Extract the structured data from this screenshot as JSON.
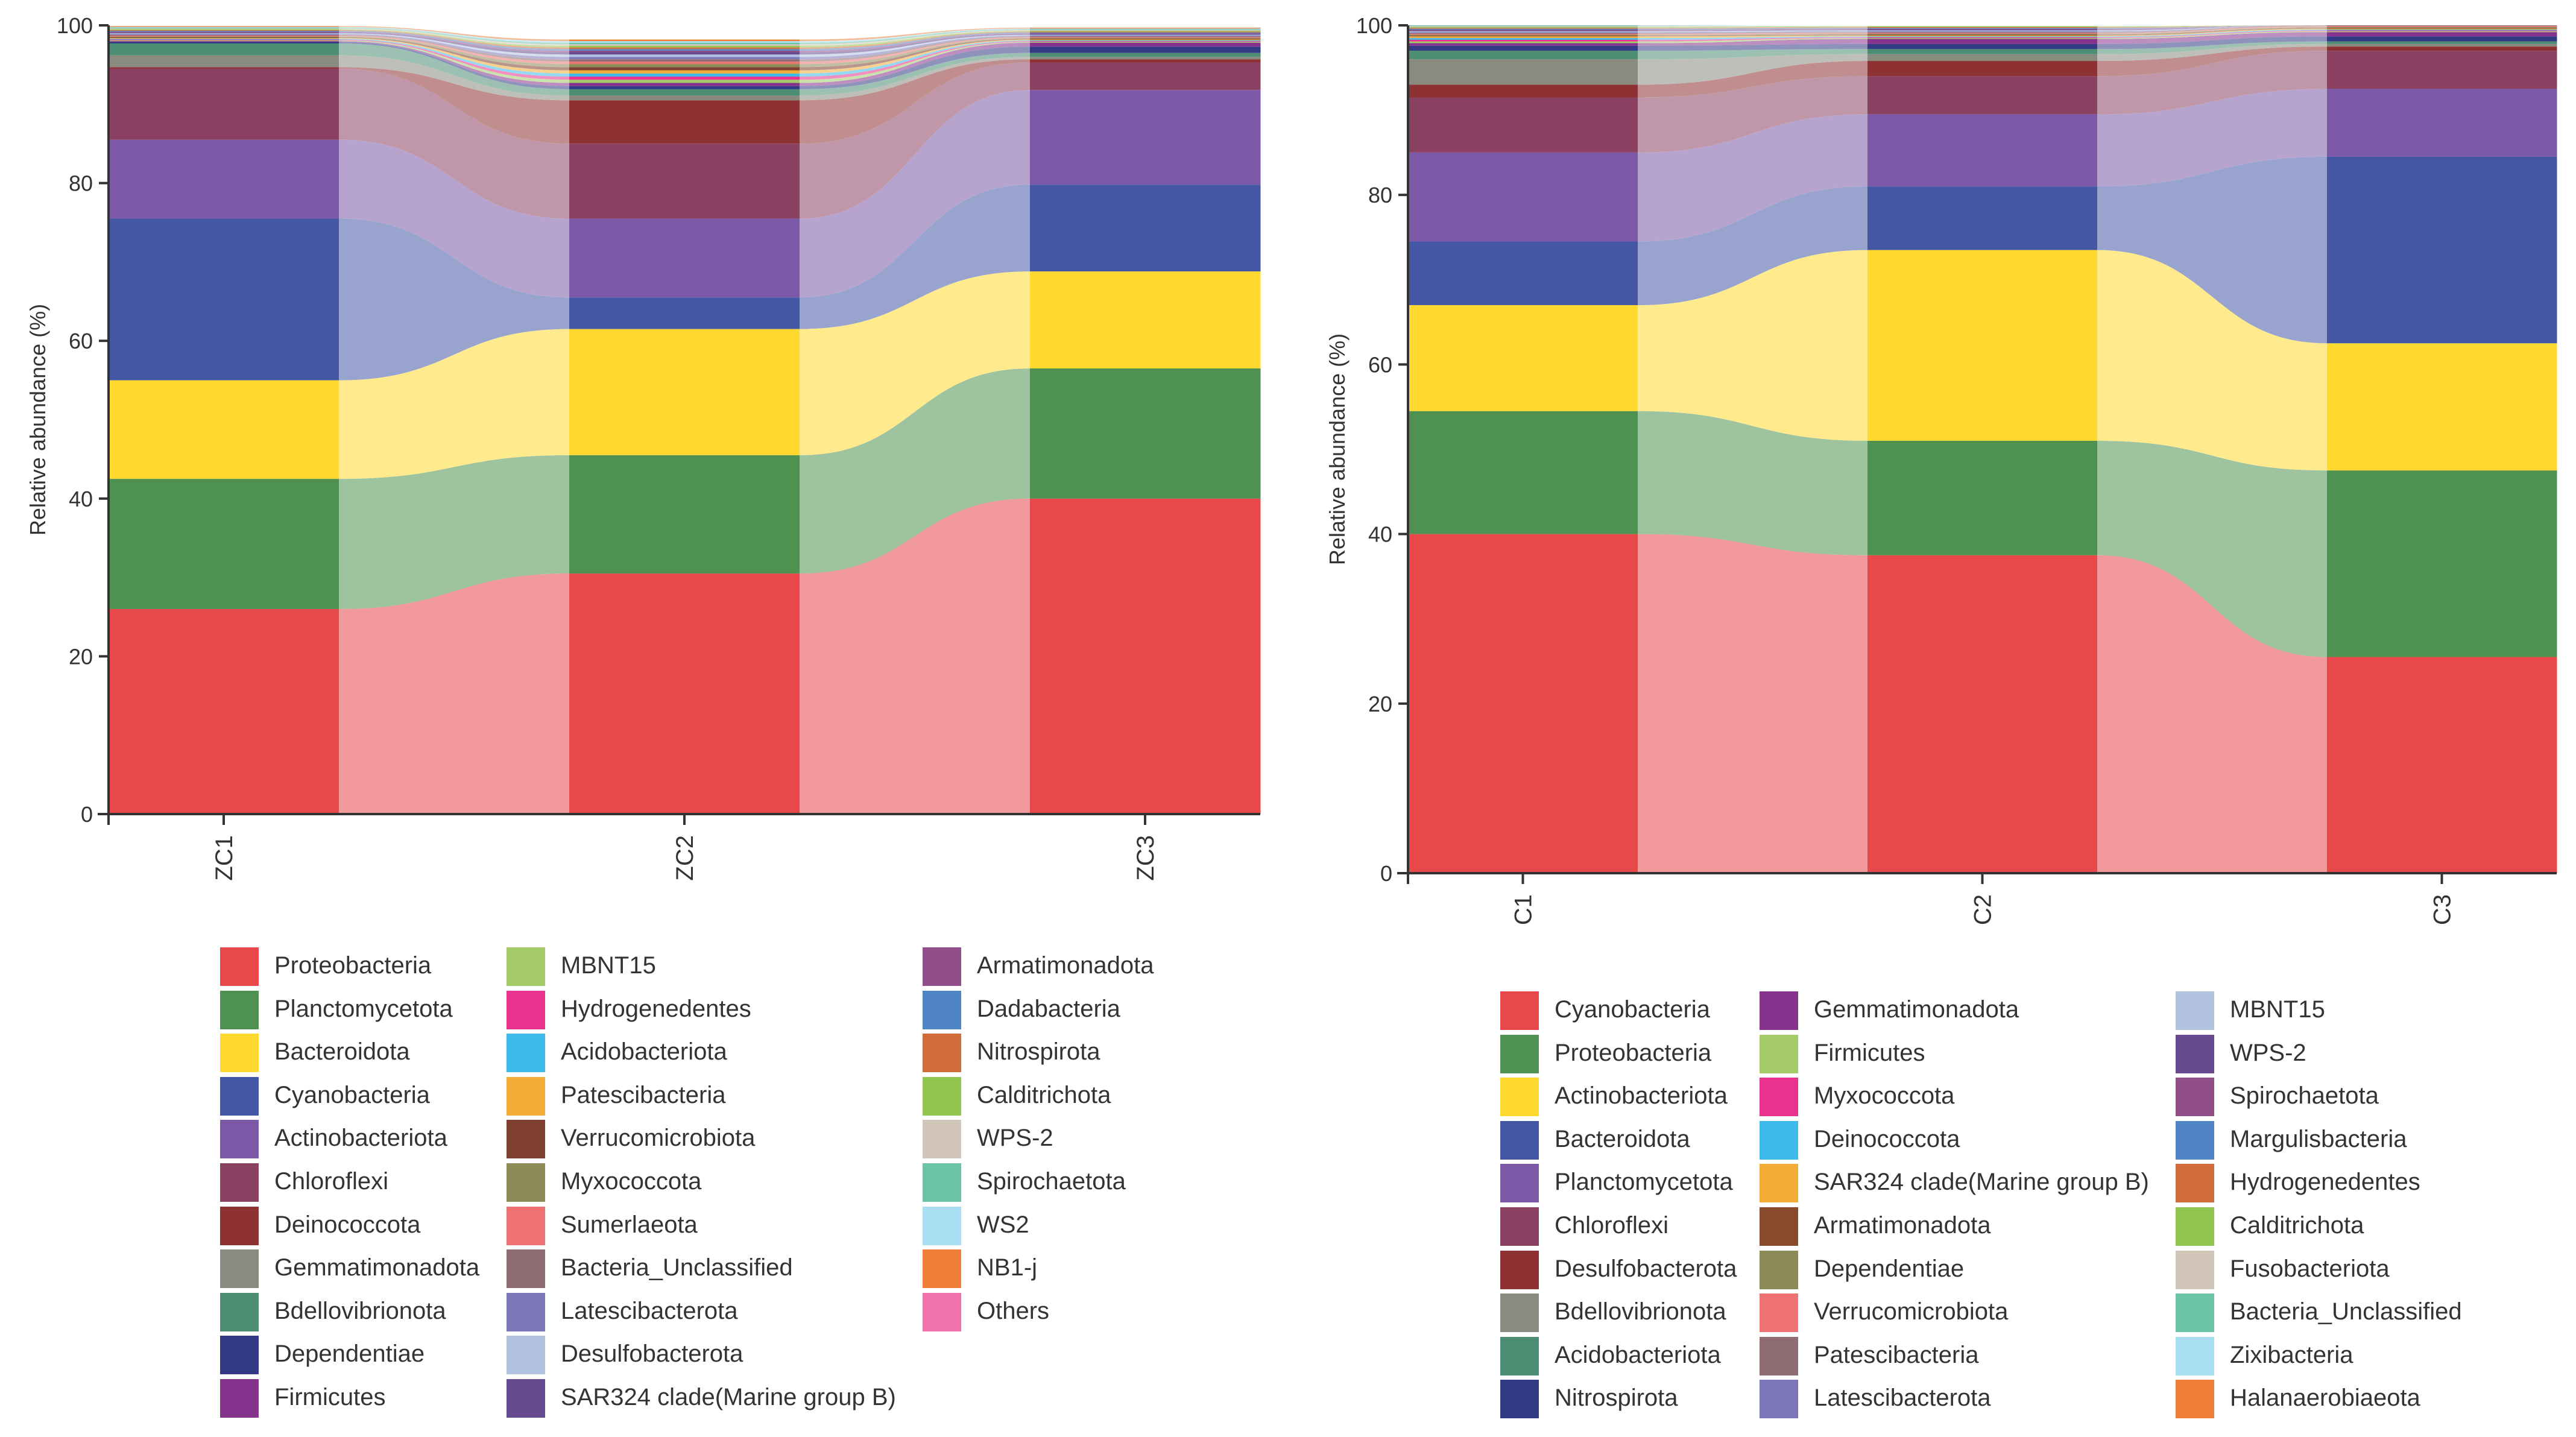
{
  "chart_data": [
    {
      "type": "area",
      "subtype": "stacked-alluvial",
      "ylabel": "Relative abundance (%)",
      "ylim": [
        0,
        100
      ],
      "yticks": [
        0,
        20,
        40,
        60,
        80,
        100
      ],
      "categories": [
        "ZC1",
        "ZC2",
        "ZC3"
      ],
      "series": [
        {
          "name": "Proteobacteria",
          "color": "#E8484A",
          "values": [
            26.0,
            30.5,
            40.0
          ]
        },
        {
          "name": "Planctomycetota",
          "color": "#4E9150",
          "values": [
            16.5,
            15.0,
            16.5
          ]
        },
        {
          "name": "Bacteroidota",
          "color": "#FFD92F",
          "values": [
            12.5,
            16.0,
            12.3
          ]
        },
        {
          "name": "Cyanobacteria",
          "color": "#4457A5",
          "values": [
            20.5,
            4.0,
            11.0
          ]
        },
        {
          "name": "Actinobacteriota",
          "color": "#7B59A7",
          "values": [
            10.0,
            10.0,
            12.0
          ]
        },
        {
          "name": "Chloroflexi",
          "color": "#8B4262",
          "values": [
            9.0,
            9.5,
            3.5
          ]
        },
        {
          "name": "Deinococcota",
          "color": "#8E3133",
          "values": [
            0.2,
            5.5,
            0.4
          ]
        },
        {
          "name": "Gemmatimonadota",
          "color": "#8A8B7F",
          "values": [
            1.5,
            0.6,
            0.3
          ]
        },
        {
          "name": "Bdellovibrionota",
          "color": "#4B8E74",
          "values": [
            1.5,
            0.8,
            0.5
          ]
        },
        {
          "name": "Dependentiae",
          "color": "#323A86",
          "values": [
            0.2,
            0.4,
            0.8
          ]
        },
        {
          "name": "Firmicutes",
          "color": "#86338D",
          "values": [
            0.1,
            0.4,
            0.5
          ]
        },
        {
          "name": "MBNT15",
          "color": "#A3CA66",
          "values": [
            0.1,
            0.4,
            0.1
          ]
        },
        {
          "name": "Hydrogenedentes",
          "color": "#E8338E",
          "values": [
            0.1,
            0.4,
            0.1
          ]
        },
        {
          "name": "Acidobacteriota",
          "color": "#3DBAE9",
          "values": [
            0.1,
            0.4,
            0.1
          ]
        },
        {
          "name": "Patescibacteria",
          "color": "#F1AB36",
          "values": [
            0.1,
            0.4,
            0.1
          ]
        },
        {
          "name": "Verrucomicrobiota",
          "color": "#7F3F2E",
          "values": [
            0.1,
            0.4,
            0.1
          ]
        },
        {
          "name": "Myxococcota",
          "color": "#8C8A57",
          "values": [
            0.1,
            0.4,
            0.1
          ]
        },
        {
          "name": "Sumerlaeota",
          "color": "#EE7272",
          "values": [
            0.1,
            0.3,
            0.1
          ]
        },
        {
          "name": "Bacteria_Unclassified",
          "color": "#8F6C72",
          "values": [
            0.1,
            0.3,
            0.1
          ]
        },
        {
          "name": "Latescibacterota",
          "color": "#7C77B9",
          "values": [
            0.1,
            0.3,
            0.1
          ]
        },
        {
          "name": "Desulfobacterota",
          "color": "#B1C3E0",
          "values": [
            0.1,
            0.3,
            0.1
          ]
        },
        {
          "name": "SAR324 clade(Marine group B)",
          "color": "#654A8E",
          "values": [
            0.1,
            0.3,
            0.1
          ]
        },
        {
          "name": "Armatimonadota",
          "color": "#904F89",
          "values": [
            0.1,
            0.2,
            0.1
          ]
        },
        {
          "name": "Dadabacteria",
          "color": "#4E84C4",
          "values": [
            0.1,
            0.2,
            0.1
          ]
        },
        {
          "name": "Nitrospirota",
          "color": "#D16C3A",
          "values": [
            0.1,
            0.2,
            0.1
          ]
        },
        {
          "name": "Calditrichota",
          "color": "#93C650",
          "values": [
            0.1,
            0.2,
            0.1
          ]
        },
        {
          "name": "WPS-2",
          "color": "#D1C6B7",
          "values": [
            0.1,
            0.2,
            0.1
          ]
        },
        {
          "name": "Spirochaetota",
          "color": "#6DC3A7",
          "values": [
            0.1,
            0.2,
            0.1
          ]
        },
        {
          "name": "WS2",
          "color": "#A9DDF1",
          "values": [
            0.1,
            0.2,
            0.1
          ]
        },
        {
          "name": "NB1-j",
          "color": "#EF7F37",
          "values": [
            0.1,
            0.2,
            0.1
          ]
        },
        {
          "name": "Others",
          "color": "#EE74AB",
          "values": [
            0.0,
            0.0,
            0.0
          ]
        }
      ]
    },
    {
      "type": "area",
      "subtype": "stacked-alluvial",
      "ylabel": "Relative abundance (%)",
      "ylim": [
        0,
        100
      ],
      "yticks": [
        0,
        20,
        40,
        60,
        80,
        100
      ],
      "categories": [
        "C1",
        "C2",
        "C3"
      ],
      "series": [
        {
          "name": "Cyanobacteria",
          "color": "#E8484A",
          "values": [
            40.0,
            37.5,
            25.5
          ]
        },
        {
          "name": "Proteobacteria",
          "color": "#4E9150",
          "values": [
            14.5,
            13.5,
            22.0
          ]
        },
        {
          "name": "Actinobacteriota",
          "color": "#FFD92F",
          "values": [
            12.5,
            22.5,
            15.0
          ]
        },
        {
          "name": "Bacteroidota",
          "color": "#4457A5",
          "values": [
            7.5,
            7.5,
            22.0
          ]
        },
        {
          "name": "Planctomycetota",
          "color": "#7B59A7",
          "values": [
            10.5,
            8.5,
            8.0
          ]
        },
        {
          "name": "Chloroflexi",
          "color": "#8B4262",
          "values": [
            6.5,
            4.5,
            4.5
          ]
        },
        {
          "name": "Desulfobacterota",
          "color": "#8E3133",
          "values": [
            1.5,
            1.8,
            0.5
          ]
        },
        {
          "name": "Bdellovibrionota",
          "color": "#8A8B7F",
          "values": [
            3.0,
            0.8,
            0.3
          ]
        },
        {
          "name": "Acidobacteriota",
          "color": "#4B8E74",
          "values": [
            1.0,
            0.6,
            0.3
          ]
        },
        {
          "name": "Nitrospirota",
          "color": "#323A86",
          "values": [
            0.6,
            0.6,
            0.6
          ]
        },
        {
          "name": "Gemmatimonadota",
          "color": "#86338D",
          "values": [
            0.3,
            0.6,
            0.5
          ]
        },
        {
          "name": "Firmicutes",
          "color": "#A3CA66",
          "values": [
            0.2,
            0.1,
            0.1
          ]
        },
        {
          "name": "Myxococcota",
          "color": "#E8338E",
          "values": [
            0.2,
            0.1,
            0.1
          ]
        },
        {
          "name": "Deinococcota",
          "color": "#3DBAE9",
          "values": [
            0.2,
            0.1,
            0.1
          ]
        },
        {
          "name": "SAR324 clade(Marine group B)",
          "color": "#F1AB36",
          "values": [
            0.2,
            0.1,
            0.1
          ]
        },
        {
          "name": "Armatimonadota",
          "color": "#8A4A2E",
          "values": [
            0.1,
            0.1,
            0.1
          ]
        },
        {
          "name": "Dependentiae",
          "color": "#8C8A57",
          "values": [
            0.1,
            0.1,
            0.1
          ]
        },
        {
          "name": "Verrucomicrobiota",
          "color": "#EE7272",
          "values": [
            0.1,
            0.1,
            0.1
          ]
        },
        {
          "name": "Patescibacteria",
          "color": "#8F6C72",
          "values": [
            0.1,
            0.1,
            0.1
          ]
        },
        {
          "name": "Latescibacterota",
          "color": "#7C77B9",
          "values": [
            0.1,
            0.1,
            0.0
          ]
        },
        {
          "name": "MBNT15",
          "color": "#B1C3E0",
          "values": [
            0.1,
            0.1,
            0.0
          ]
        },
        {
          "name": "WPS-2",
          "color": "#654A8E",
          "values": [
            0.1,
            0.1,
            0.0
          ]
        },
        {
          "name": "Spirochaetota",
          "color": "#904F89",
          "values": [
            0.1,
            0.1,
            0.0
          ]
        },
        {
          "name": "Margulisbacteria",
          "color": "#4E84C4",
          "values": [
            0.1,
            0.1,
            0.0
          ]
        },
        {
          "name": "Hydrogenedentes",
          "color": "#D16C3A",
          "values": [
            0.1,
            0.1,
            0.0
          ]
        },
        {
          "name": "Calditrichota",
          "color": "#93C650",
          "values": [
            0.1,
            0.1,
            0.0
          ]
        },
        {
          "name": "Fusobacteriota",
          "color": "#D1C6B7",
          "values": [
            0.1,
            0.0,
            0.0
          ]
        },
        {
          "name": "Bacteria_Unclassified",
          "color": "#6DC3A7",
          "values": [
            0.1,
            0.0,
            0.0
          ]
        },
        {
          "name": "Zixibacteria",
          "color": "#A9DDF1",
          "values": [
            0.0,
            0.0,
            0.0
          ]
        },
        {
          "name": "Halanaerobiaeota",
          "color": "#EF7F37",
          "values": [
            0.0,
            0.0,
            0.0
          ]
        }
      ]
    }
  ]
}
